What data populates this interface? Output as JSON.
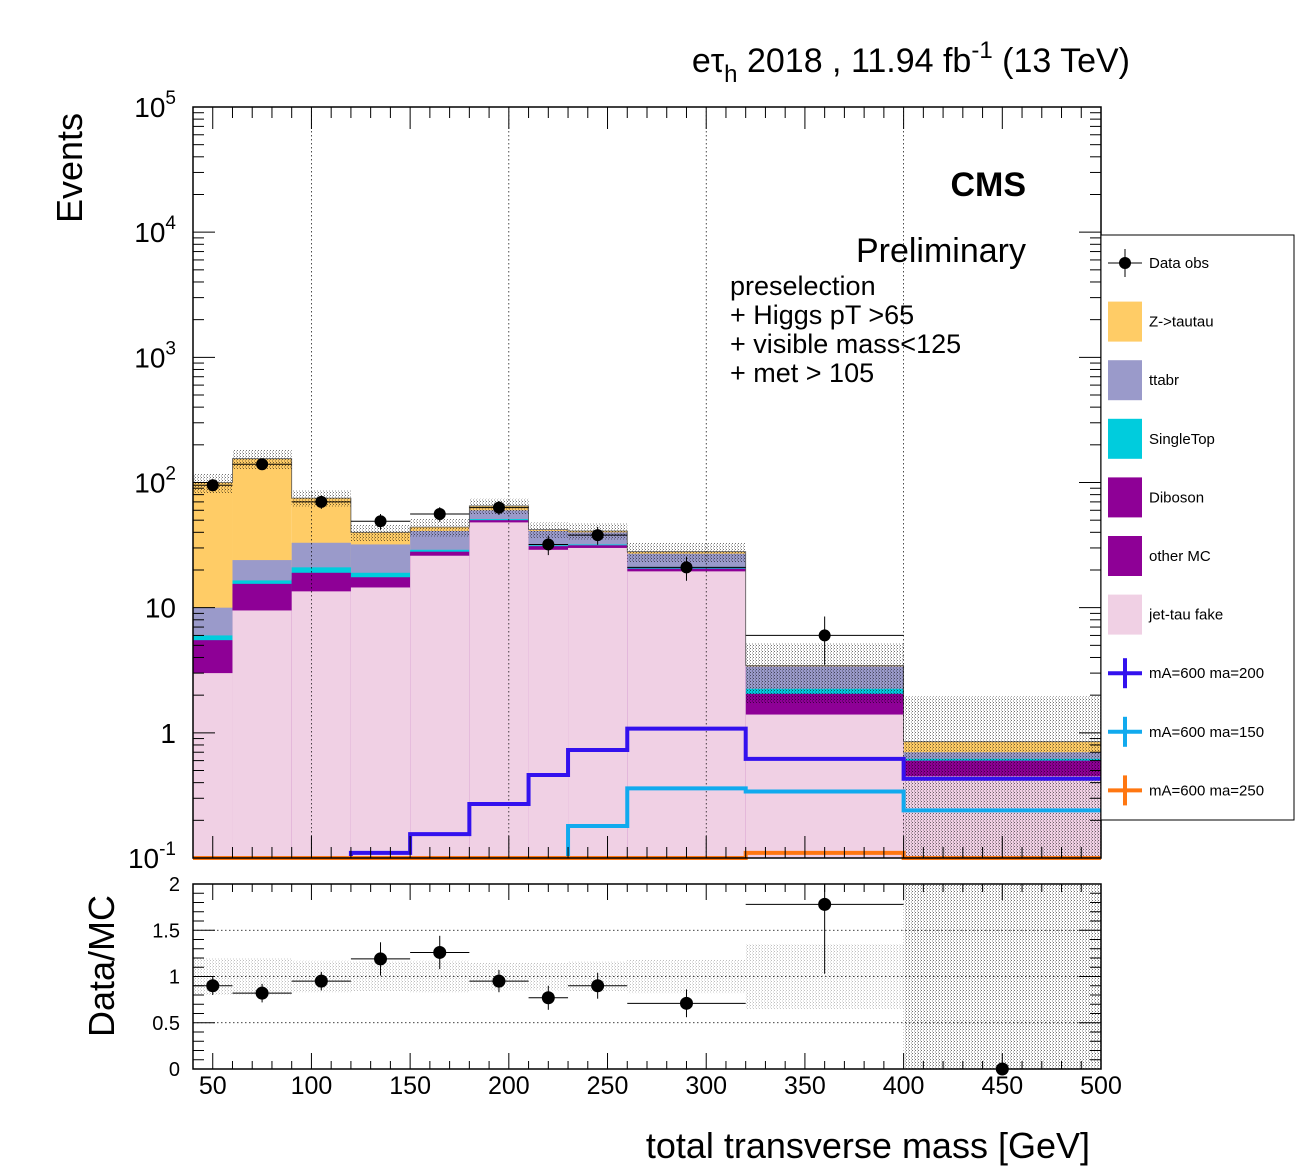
{
  "header": {
    "channel": "eτ",
    "channel_sub": "h",
    "rest": " 2018 , 11.94 fb",
    "exp": "-1",
    "energy": " (13 TeV)"
  },
  "labels": {
    "cms": "CMS",
    "preliminary": "Preliminary",
    "selection": [
      "preselection",
      "+ Higgs pT >65",
      "+ visible mass<125",
      "+ met > 105"
    ]
  },
  "chart_data": [
    {
      "type": "bar",
      "stacked": true,
      "log_scale": true,
      "ylabel": "Events",
      "ylim": [
        0.1,
        100000
      ],
      "xlim": [
        40,
        500
      ],
      "y_ticks": [
        {
          "v": 0.1,
          "base": "10",
          "exp": "-1"
        },
        {
          "v": 1,
          "base": "1",
          "exp": ""
        },
        {
          "v": 10,
          "base": "10",
          "exp": ""
        },
        {
          "v": 100,
          "base": "10",
          "exp": "2"
        },
        {
          "v": 1000,
          "base": "10",
          "exp": "3"
        },
        {
          "v": 10000,
          "base": "10",
          "exp": "4"
        },
        {
          "v": 100000,
          "base": "10",
          "exp": "5"
        }
      ],
      "bin_edges": [
        40,
        60,
        90,
        120,
        150,
        180,
        210,
        230,
        260,
        320,
        400,
        500
      ],
      "stack_cumulative": [
        {
          "name": "jet-tau fake",
          "color": "#f0d0e4",
          "values": [
            3.0,
            9.5,
            13.5,
            14.5,
            26,
            48,
            29,
            30,
            19.5,
            1.4,
            0.45
          ]
        },
        {
          "name": "other MC",
          "color": "#8e0096",
          "values": [
            4.5,
            13,
            17,
            16,
            27,
            49,
            30,
            31,
            20,
            1.8,
            0.55
          ]
        },
        {
          "name": "Diboson",
          "color": "#8e0096",
          "values": [
            5.5,
            15.5,
            19,
            17.5,
            28,
            50,
            31,
            31.5,
            20.5,
            2.05,
            0.6
          ]
        },
        {
          "name": "SingleTop",
          "color": "#00ccdd",
          "values": [
            6.0,
            16.5,
            21,
            19,
            29,
            51,
            31.5,
            32,
            21,
            2.25,
            0.62
          ]
        },
        {
          "name": "ttabr",
          "color": "#9a9aca",
          "values": [
            10,
            24,
            33,
            32,
            41,
            60,
            41,
            40,
            27,
            3.4,
            0.7
          ]
        },
        {
          "name": "Z->tautau",
          "color": "#ffcc66",
          "values": [
            100,
            155,
            75,
            40,
            44,
            65,
            42,
            41,
            28,
            3.45,
            0.85
          ]
        }
      ],
      "error_band_rel": [
        0.18,
        0.18,
        0.15,
        0.15,
        0.16,
        0.14,
        0.14,
        0.15,
        0.18,
        0.5,
        1.3
      ],
      "data_obs": {
        "name": "Data obs",
        "x": [
          50,
          75,
          105,
          135,
          165,
          195,
          220,
          245,
          290,
          360,
          450
        ],
        "y": [
          95,
          140,
          70,
          49,
          56,
          63,
          32,
          38,
          21,
          6,
          0
        ],
        "yerr": [
          10,
          12,
          8.5,
          7,
          7.5,
          8,
          5.7,
          6.2,
          4.6,
          2.5,
          0
        ]
      },
      "signals": [
        {
          "name": "mA=600 ma=200",
          "color": "#3311ee",
          "values": [
            0,
            0,
            0,
            0.11,
            0.155,
            0.27,
            0.46,
            0.73,
            1.08,
            0.62,
            0.43
          ]
        },
        {
          "name": "mA=600 ma=150",
          "color": "#11aaee",
          "values": [
            0,
            0,
            0,
            0,
            0,
            0,
            0,
            0.18,
            0.36,
            0.34,
            0.24
          ]
        },
        {
          "name": "mA=600 ma=250",
          "color": "#ff7711",
          "values": [
            0.1,
            0.1,
            0.1,
            0.1,
            0.1,
            0.1,
            0.1,
            0.1,
            0.1,
            0.11,
            0.1
          ]
        }
      ],
      "legend_entries": [
        "Data obs",
        "Z->tautau",
        "ttabr",
        "SingleTop",
        "Diboson",
        "other MC",
        "jet-tau fake",
        "mA=600 ma=200",
        "mA=600 ma=150",
        "mA=600 ma=250"
      ],
      "legend_placement": "right"
    },
    {
      "type": "scatter",
      "ylabel": "Data/MC",
      "xlabel": "total transverse mass [GeV]",
      "ylim": [
        0,
        2
      ],
      "xlim": [
        40,
        500
      ],
      "x_ticks": [
        50,
        100,
        150,
        200,
        250,
        300,
        350,
        400,
        450,
        500
      ],
      "y_ticks": [
        "0",
        "0.5",
        "1",
        "1.5",
        "2"
      ],
      "bin_edges": [
        40,
        60,
        90,
        120,
        150,
        180,
        210,
        230,
        260,
        320,
        400,
        500
      ],
      "x": [
        50,
        75,
        105,
        135,
        165,
        195,
        220,
        245,
        290,
        360,
        450
      ],
      "y": [
        0.9,
        0.82,
        0.95,
        1.19,
        1.26,
        0.95,
        0.77,
        0.9,
        0.71,
        1.78,
        0
      ],
      "yerr": [
        0.1,
        0.1,
        0.1,
        0.18,
        0.18,
        0.12,
        0.13,
        0.14,
        0.15,
        0.75,
        0
      ],
      "band_rel": [
        0.2,
        0.2,
        0.17,
        0.16,
        0.17,
        0.15,
        0.15,
        0.16,
        0.18,
        0.35,
        1.3
      ]
    }
  ]
}
